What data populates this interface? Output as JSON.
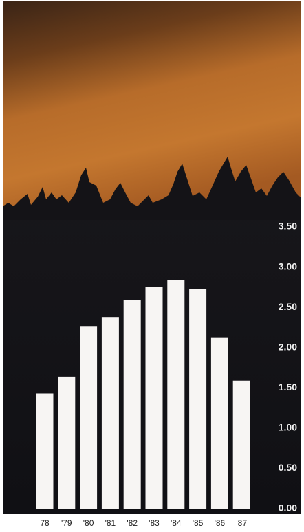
{
  "chart_data": {
    "type": "bar",
    "categories": [
      "78",
      "'79",
      "'80",
      "'81",
      "'82",
      "'83",
      "'84",
      "'85",
      "'86",
      "'87"
    ],
    "values": [
      1.43,
      1.64,
      2.26,
      2.38,
      2.59,
      2.75,
      2.84,
      2.73,
      2.12,
      1.59
    ],
    "color": "#f7f5f3",
    "ylim": [
      0,
      3.5
    ],
    "yticks": [
      {
        "value": 0,
        "label": "0.00"
      },
      {
        "value": 0.5,
        "label": "0.50"
      },
      {
        "value": 1,
        "label": "1.00"
      },
      {
        "value": 1.5,
        "label": "1.50"
      },
      {
        "value": 2,
        "label": "2.00"
      },
      {
        "value": 2.5,
        "label": "2.50"
      },
      {
        "value": 3,
        "label": "3.00"
      },
      {
        "value": 3.5,
        "label": "3.50"
      }
    ]
  }
}
